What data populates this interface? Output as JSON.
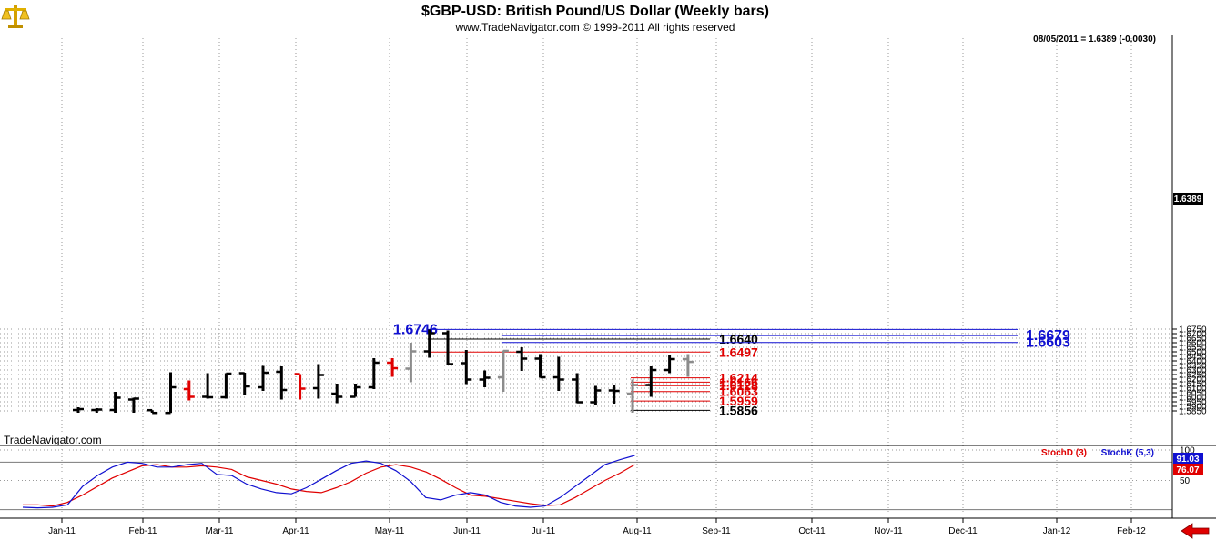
{
  "header": {
    "title": "$GBP-USD:  British Pound/US Dollar  (Weekly bars)",
    "copyright": "www.TradeNavigator.com © 1999-2011 All rights reserved",
    "readout": "08/05/2011 = 1.6389 (-0.0030)",
    "watermark": "TradeNavigator.com"
  },
  "colors": {
    "up_bar": "#000000",
    "down_bar": "#e00000",
    "neutral_bar": "#8c8c8c",
    "resistance": "#1010d0",
    "support": "#e00000",
    "pivot": "#000000",
    "stochD": "#e00000",
    "stochK": "#1010d0",
    "last_price_bg": "#000000",
    "arrow": "#e00000"
  },
  "icons": {
    "logo": "gold-balance-scale-icon",
    "scroll": "red-left-arrow-icon"
  },
  "chart_data": [
    {
      "type": "ohlc",
      "title": "$GBP-USD:  British Pound/US Dollar  (Weekly bars)",
      "ylim": [
        1.582,
        1.676
      ],
      "yticks": [
        "1.5850",
        "1.5900",
        "1.5950",
        "1.6000",
        "1.6050",
        "1.6100",
        "1.6150",
        "1.6200",
        "1.6250",
        "1.6300",
        "1.6350",
        "1.6400",
        "1.6450",
        "1.6500",
        "1.6550",
        "1.6600",
        "1.6650",
        "1.6700",
        "1.6750"
      ],
      "last_price_label": "1.6389",
      "last_price": 1.6389,
      "x_labels": [
        "Jan-11",
        "Feb-11",
        "Mar-11",
        "Apr-11",
        "May-11",
        "Jun-11",
        "Jul-11",
        "Aug-11",
        "Sep-11",
        "Oct-11",
        "Nov-11",
        "Dec-11",
        "Jan-12",
        "Feb-12"
      ],
      "bars": [
        {
          "o": 1.586,
          "h": 1.589,
          "l": 1.583,
          "c": 1.587,
          "k": "up"
        },
        {
          "o": 1.586,
          "h": 1.588,
          "l": 1.583,
          "c": 1.5865,
          "k": "up"
        },
        {
          "o": 1.586,
          "h": 1.606,
          "l": 1.583,
          "c": 1.5995,
          "k": "up"
        },
        {
          "o": 1.5975,
          "h": 1.5995,
          "l": 1.583,
          "c": 1.5985,
          "k": "up"
        },
        {
          "o": 1.5858,
          "h": 1.5858,
          "l": 1.583,
          "c": 1.5828,
          "k": "up"
        },
        {
          "o": 1.5828,
          "h": 1.6275,
          "l": 1.5828,
          "c": 1.611,
          "k": "up"
        },
        {
          "o": 1.609,
          "h": 1.6185,
          "l": 1.5965,
          "c": 1.6005,
          "k": "down"
        },
        {
          "o": 1.6005,
          "h": 1.6265,
          "l": 1.5985,
          "c": 1.6,
          "k": "up"
        },
        {
          "o": 1.6,
          "h": 1.6265,
          "l": 1.5985,
          "c": 1.626,
          "k": "up"
        },
        {
          "o": 1.6265,
          "h": 1.627,
          "l": 1.6025,
          "c": 1.612,
          "k": "up"
        },
        {
          "o": 1.611,
          "h": 1.6345,
          "l": 1.607,
          "c": 1.627,
          "k": "up"
        },
        {
          "o": 1.628,
          "h": 1.634,
          "l": 1.5975,
          "c": 1.608,
          "k": "up"
        },
        {
          "o": 1.6255,
          "h": 1.6255,
          "l": 1.5975,
          "c": 1.6095,
          "k": "down"
        },
        {
          "o": 1.61,
          "h": 1.6365,
          "l": 1.5985,
          "c": 1.6245,
          "k": "up"
        },
        {
          "o": 1.604,
          "h": 1.615,
          "l": 1.5935,
          "c": 1.6005,
          "k": "up"
        },
        {
          "o": 1.6005,
          "h": 1.615,
          "l": 1.6005,
          "c": 1.611,
          "k": "up"
        },
        {
          "o": 1.611,
          "h": 1.643,
          "l": 1.609,
          "c": 1.638,
          "k": "up"
        },
        {
          "o": 1.638,
          "h": 1.643,
          "l": 1.6225,
          "c": 1.632,
          "k": "down"
        },
        {
          "o": 1.6315,
          "h": 1.66,
          "l": 1.6165,
          "c": 1.6505,
          "k": "neutral"
        },
        {
          "o": 1.6505,
          "h": 1.6745,
          "l": 1.6435,
          "c": 1.6705,
          "k": "up"
        },
        {
          "o": 1.6705,
          "h": 1.6735,
          "l": 1.6355,
          "c": 1.6365,
          "k": "up"
        },
        {
          "o": 1.6375,
          "h": 1.652,
          "l": 1.6145,
          "c": 1.6195,
          "k": "up"
        },
        {
          "o": 1.6195,
          "h": 1.6295,
          "l": 1.611,
          "c": 1.6215,
          "k": "up"
        },
        {
          "o": 1.622,
          "h": 1.6515,
          "l": 1.606,
          "c": 1.651,
          "k": "neutral"
        },
        {
          "o": 1.65,
          "h": 1.655,
          "l": 1.629,
          "c": 1.6425,
          "k": "up"
        },
        {
          "o": 1.6425,
          "h": 1.6475,
          "l": 1.6215,
          "c": 1.622,
          "k": "up"
        },
        {
          "o": 1.622,
          "h": 1.6445,
          "l": 1.607,
          "c": 1.6195,
          "k": "up"
        },
        {
          "o": 1.6195,
          "h": 1.6265,
          "l": 1.5935,
          "c": 1.5945,
          "k": "up"
        },
        {
          "o": 1.5945,
          "h": 1.6125,
          "l": 1.591,
          "c": 1.6075,
          "k": "up"
        },
        {
          "o": 1.6075,
          "h": 1.6135,
          "l": 1.593,
          "c": 1.607,
          "k": "up"
        },
        {
          "o": 1.604,
          "h": 1.6195,
          "l": 1.583,
          "c": 1.6135,
          "k": "neutral"
        },
        {
          "o": 1.6135,
          "h": 1.634,
          "l": 1.6005,
          "c": 1.63,
          "k": "up"
        },
        {
          "o": 1.63,
          "h": 1.647,
          "l": 1.6265,
          "c": 1.642,
          "k": "up"
        },
        {
          "o": 1.642,
          "h": 1.6475,
          "l": 1.6225,
          "c": 1.6389,
          "k": "neutral"
        }
      ],
      "levels": [
        {
          "label": "1.6746",
          "value": 1.6746,
          "kind": "resistance",
          "from_bar": 19,
          "label_pos": "left"
        },
        {
          "label": "1.6679",
          "value": 1.6679,
          "kind": "resistance",
          "from_bar": 23,
          "label_pos": "right"
        },
        {
          "label": "1.6640",
          "value": 1.664,
          "kind": "pivot",
          "from_bar": 19,
          "label_pos": "mid"
        },
        {
          "label": "1.6603",
          "value": 1.6603,
          "kind": "resistance",
          "from_bar": 23,
          "label_pos": "right"
        },
        {
          "label": "1.6497",
          "value": 1.6497,
          "kind": "support",
          "from_bar": 19,
          "label_pos": "mid"
        },
        {
          "label": "1.6214",
          "value": 1.6214,
          "kind": "support",
          "from_bar": 30,
          "label_pos": "mid"
        },
        {
          "label": "1.6166",
          "value": 1.6166,
          "kind": "support",
          "from_bar": 30,
          "label_pos": "mid"
        },
        {
          "label": "1.6128",
          "value": 1.6128,
          "kind": "support",
          "from_bar": 30,
          "label_pos": "mid"
        },
        {
          "label": "1.6063",
          "value": 1.6063,
          "kind": "support",
          "from_bar": 30,
          "label_pos": "mid"
        },
        {
          "label": "1.5959",
          "value": 1.5959,
          "kind": "support",
          "from_bar": 30,
          "label_pos": "mid"
        },
        {
          "label": "1.5856",
          "value": 1.5856,
          "kind": "pivot",
          "from_bar": 30,
          "label_pos": "mid"
        }
      ]
    },
    {
      "type": "line",
      "ylim": [
        0,
        100
      ],
      "yticks": [
        "100",
        "50"
      ],
      "reference_line": 80,
      "legend": [
        "StochD (3)",
        "StochK (5,3)"
      ],
      "series": [
        {
          "name": "StochD (3)",
          "last_label": "76.07",
          "values": [
            10,
            10,
            8,
            14,
            26,
            40,
            54,
            64,
            74,
            76,
            72,
            72,
            74,
            72,
            68,
            56,
            50,
            44,
            36,
            32,
            30,
            38,
            48,
            62,
            72,
            76,
            72,
            64,
            52,
            38,
            26,
            24,
            20,
            16,
            12,
            9,
            10,
            22,
            36,
            50,
            62,
            76
          ]
        },
        {
          "name": "StochK (5,3)",
          "last_label": "91.03",
          "values": [
            6,
            5,
            6,
            10,
            40,
            58,
            72,
            80,
            78,
            72,
            72,
            76,
            78,
            60,
            58,
            44,
            36,
            30,
            28,
            38,
            52,
            66,
            78,
            82,
            78,
            66,
            48,
            22,
            18,
            26,
            30,
            26,
            14,
            8,
            6,
            8,
            22,
            40,
            58,
            76,
            84,
            91
          ]
        }
      ]
    }
  ]
}
